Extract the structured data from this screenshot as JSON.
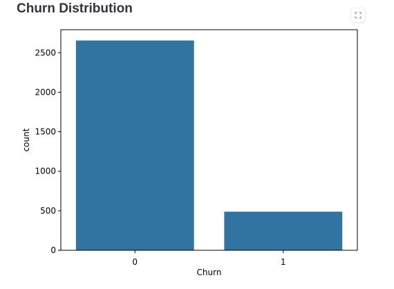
{
  "page": {
    "title": "Churn Distribution",
    "fullscreen_icon": "expand-icon"
  },
  "colors": {
    "bar": "#3274a1",
    "bar_edge": "#ffffff",
    "axis": "#000000",
    "title": "#31333f"
  },
  "chart_data": {
    "type": "bar",
    "title": "",
    "xlabel": "Churn",
    "ylabel": "count",
    "categories": [
      "0",
      "1"
    ],
    "values": [
      2658,
      492
    ],
    "ylim": [
      0,
      2791
    ],
    "yticks": [
      0,
      500,
      1000,
      1500,
      2000,
      2500
    ],
    "grid": false,
    "legend": "none"
  }
}
